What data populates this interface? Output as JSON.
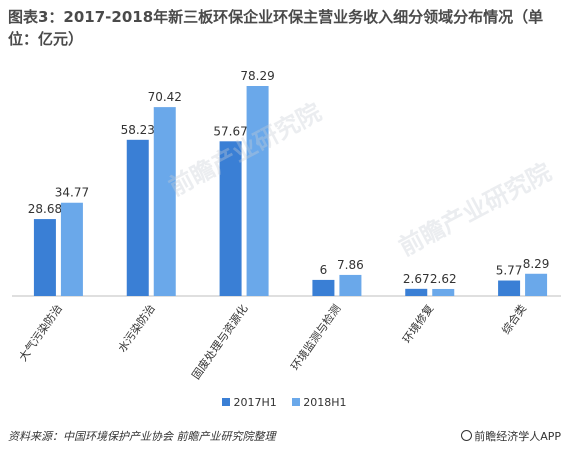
{
  "title": "图表3：2017-2018年新三板环保企业环保主营业务收入细分领域分布情况（单位：亿元）",
  "footer": {
    "source": "资料来源：中国环境保护产业协会 前瞻产业研究院整理",
    "brand": "前瞻经济学人APP",
    "brand_icon": "circle-logo-icon"
  },
  "watermark": "前瞻产业研究院",
  "colors": {
    "2017H1": "#3a7fd5",
    "2018H1": "#6aa8ea",
    "axis": "#bfbfbf",
    "label": "#333333"
  },
  "chart_data": {
    "type": "bar",
    "title": "图表3：2017-2018年新三板环保企业环保主营业务收入细分领域分布情况（单位：亿元）",
    "categories": [
      "大气污染防治",
      "水污染防治",
      "固废处理与资源化",
      "环境监测与检测",
      "环境修复",
      "综合类"
    ],
    "series": [
      {
        "name": "2017H1",
        "values": [
          28.68,
          58.23,
          57.67,
          6,
          2.67,
          5.77
        ]
      },
      {
        "name": "2018H1",
        "values": [
          34.77,
          70.42,
          78.29,
          7.86,
          2.62,
          8.29
        ]
      }
    ],
    "value_labels": [
      [
        "28.68",
        "58.23",
        "57.67",
        "6",
        "2.67",
        "5.77"
      ],
      [
        "34.77",
        "70.42",
        "78.29",
        "7.86",
        "2.62",
        "8.29"
      ]
    ],
    "ylim": [
      0,
      80
    ],
    "legend": "bottom",
    "grid": false
  }
}
